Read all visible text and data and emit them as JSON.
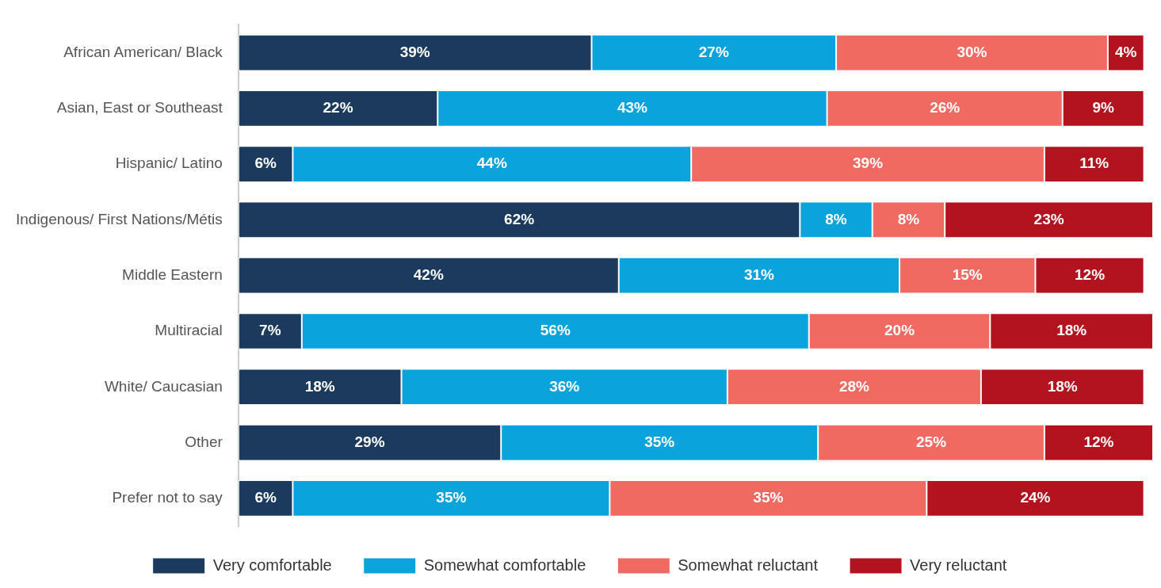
{
  "chart_data": {
    "type": "bar",
    "orientation": "horizontal",
    "stacked": true,
    "legend": "bottom",
    "grid": false,
    "categories": [
      "African American/ Black",
      "Asian, East or Southeast",
      "Hispanic/ Latino",
      "Indigenous/ First Nations/Métis",
      "Middle Eastern",
      "Multiracial",
      "White/ Caucasian",
      "Other",
      "Prefer not to say"
    ],
    "series": [
      {
        "name": "Very comfortable",
        "color": "#1b3a5e",
        "values": [
          39,
          22,
          6,
          62,
          42,
          7,
          18,
          29,
          6
        ],
        "value_labels": [
          "39%",
          "22%",
          "6%",
          "62%",
          "42%",
          "7%",
          "18%",
          "29%",
          "6%"
        ]
      },
      {
        "name": "Somewhat comfortable",
        "color": "#0ba3dc",
        "values": [
          27,
          43,
          44,
          8,
          31,
          56,
          36,
          35,
          35
        ],
        "value_labels": [
          "27%",
          "43%",
          "44%",
          "8%",
          "31%",
          "56%",
          "36%",
          "35%",
          "35%"
        ]
      },
      {
        "name": "Somewhat reluctant",
        "color": "#f06a62",
        "values": [
          30,
          26,
          39,
          8,
          15,
          20,
          28,
          25,
          35
        ],
        "value_labels": [
          "30%",
          "26%",
          "39%",
          "8%",
          "15%",
          "20%",
          "28%",
          "25%",
          "35%"
        ]
      },
      {
        "name": "Very reluctant",
        "color": "#b3121f",
        "values": [
          4,
          9,
          11,
          23,
          12,
          18,
          18,
          12,
          24
        ],
        "value_labels": [
          "4%",
          "9%",
          "11%",
          "23%",
          "12%",
          "18%",
          "18%",
          "12%",
          "24%"
        ]
      }
    ]
  }
}
